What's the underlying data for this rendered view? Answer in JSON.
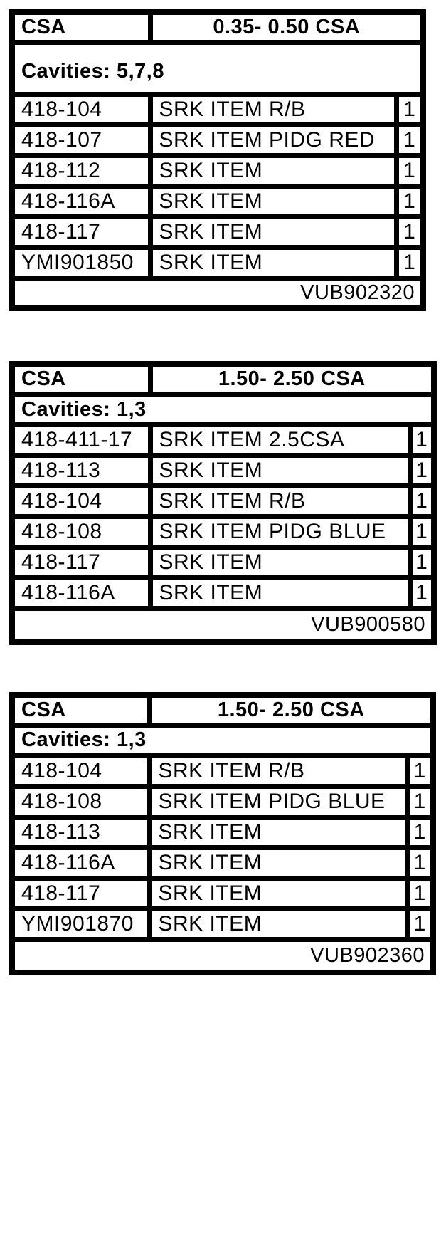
{
  "page": {
    "background": "#ffffff",
    "line_color": "#000000",
    "kind": "shrink-kit parts tables"
  },
  "tables": [
    {
      "header": {
        "label": "CSA",
        "range": "0.35- 0.50 CSA"
      },
      "cavities": "Cavities: 5,7,8",
      "columns": [
        "part-number",
        "description",
        "qty"
      ],
      "rows": [
        {
          "part": "418-104",
          "desc": "SRK ITEM R/B",
          "qty": "1"
        },
        {
          "part": "418-107",
          "desc": "SRK ITEM PIDG RED",
          "qty": "1"
        },
        {
          "part": "418-112",
          "desc": "SRK ITEM",
          "qty": "1"
        },
        {
          "part": "418-116A",
          "desc": "SRK ITEM",
          "qty": "1"
        },
        {
          "part": "418-117",
          "desc": "SRK ITEM",
          "qty": "1"
        },
        {
          "part": "YMI901850",
          "desc": "SRK ITEM",
          "qty": "1"
        }
      ],
      "footer": "VUB902320"
    },
    {
      "header": {
        "label": "CSA",
        "range": "1.50- 2.50 CSA"
      },
      "cavities": "Cavities: 1,3",
      "columns": [
        "part-number",
        "description",
        "qty"
      ],
      "rows": [
        {
          "part": "418-411-17",
          "desc": "SRK ITEM 2.5CSA",
          "qty": "1"
        },
        {
          "part": "418-113",
          "desc": "SRK ITEM",
          "qty": "1"
        },
        {
          "part": "418-104",
          "desc": "SRK ITEM R/B",
          "qty": "1"
        },
        {
          "part": "418-108",
          "desc": "SRK ITEM PIDG BLUE",
          "qty": "1"
        },
        {
          "part": "418-117",
          "desc": "SRK ITEM",
          "qty": "1"
        },
        {
          "part": "418-116A",
          "desc": "SRK ITEM",
          "qty": "1"
        }
      ],
      "footer": "VUB900580"
    },
    {
      "header": {
        "label": "CSA",
        "range": "1.50- 2.50 CSA"
      },
      "cavities": "Cavities: 1,3",
      "columns": [
        "part-number",
        "description",
        "qty"
      ],
      "rows": [
        {
          "part": "418-104",
          "desc": "SRK ITEM R/B",
          "qty": "1"
        },
        {
          "part": "418-108",
          "desc": "SRK ITEM PIDG BLUE",
          "qty": "1"
        },
        {
          "part": "418-113",
          "desc": "SRK ITEM",
          "qty": "1"
        },
        {
          "part": "418-116A",
          "desc": "SRK ITEM",
          "qty": "1"
        },
        {
          "part": "418-117",
          "desc": "SRK ITEM",
          "qty": "1"
        },
        {
          "part": "YMI901870",
          "desc": "SRK ITEM",
          "qty": "1"
        }
      ],
      "footer": "VUB902360"
    }
  ]
}
